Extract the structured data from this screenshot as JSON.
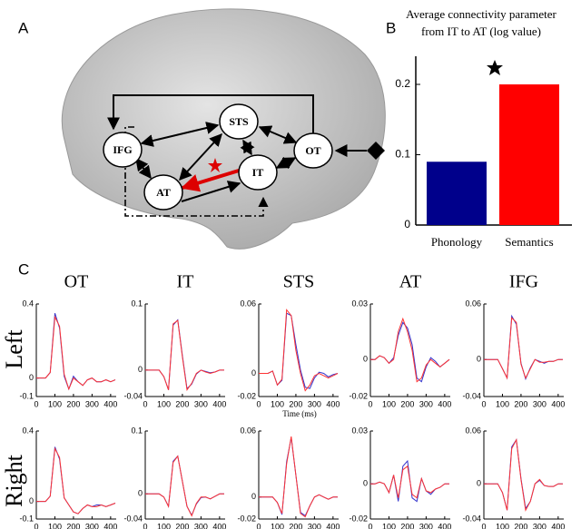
{
  "panel_labels": [
    "A",
    "B",
    "C"
  ],
  "diagram": {
    "nodes": [
      {
        "label": "IFG"
      },
      {
        "label": "STS"
      },
      {
        "label": "OT"
      },
      {
        "label": "IT"
      },
      {
        "label": "AT"
      }
    ]
  },
  "row_labels": [
    "Left",
    "Right"
  ],
  "chart_data": [
    {
      "type": "bar",
      "title": [
        "Average connectivity parameter",
        "from IT to AT  (log value)"
      ],
      "categories": [
        "Phonology",
        "Semantics"
      ],
      "values": [
        0.09,
        0.2
      ],
      "colors": [
        "#00008b",
        "#ff0000"
      ],
      "ylim": [
        0,
        0.24
      ],
      "yticks": [
        0,
        0.1,
        0.2
      ]
    },
    {
      "type": "line",
      "title": "OT",
      "x": [
        0,
        25,
        50,
        75,
        100,
        125,
        150,
        175,
        200,
        225,
        250,
        275,
        300,
        325,
        350,
        375,
        400,
        425
      ],
      "xlim": [
        0,
        430
      ],
      "xticks": [
        0,
        100,
        200,
        300,
        400
      ],
      "ylim": [
        -0.1,
        0.4
      ],
      "yticks": [
        -0.1,
        0,
        0.4
      ],
      "series": [
        {
          "color": "#3333cc",
          "values": [
            0,
            0,
            0,
            0.03,
            0.35,
            0.27,
            0.01,
            -0.06,
            0.01,
            -0.02,
            -0.04,
            -0.01,
            0,
            -0.02,
            -0.02,
            -0.01,
            -0.02,
            -0.01
          ]
        },
        {
          "color": "#ff3333",
          "values": [
            0,
            0,
            0,
            0.03,
            0.33,
            0.28,
            0.02,
            -0.06,
            0,
            -0.02,
            -0.04,
            -0.01,
            0,
            -0.02,
            -0.02,
            -0.01,
            -0.02,
            -0.01
          ]
        }
      ]
    },
    {
      "type": "line",
      "title": "IT",
      "x": [
        0,
        25,
        50,
        75,
        100,
        125,
        150,
        175,
        200,
        225,
        250,
        275,
        300,
        325,
        350,
        375,
        400,
        425
      ],
      "xlim": [
        0,
        430
      ],
      "xticks": [
        0,
        100,
        200,
        300,
        400
      ],
      "ylim": [
        -0.04,
        0.1
      ],
      "yticks": [
        -0.04,
        0,
        0.1
      ],
      "series": [
        {
          "color": "#3333cc",
          "values": [
            0,
            0,
            0,
            0,
            -0.01,
            -0.03,
            0.068,
            0.076,
            0.022,
            -0.028,
            -0.021,
            -0.006,
            0,
            -0.002,
            -0.004,
            -0.003,
            0,
            0
          ]
        },
        {
          "color": "#ff3333",
          "values": [
            0,
            0,
            0,
            0,
            -0.01,
            -0.03,
            0.07,
            0.075,
            0.02,
            -0.03,
            -0.02,
            -0.005,
            0,
            -0.003,
            -0.005,
            -0.003,
            0,
            0
          ]
        }
      ]
    },
    {
      "type": "line",
      "title": "STS",
      "xlabel": "Time (ms)",
      "x": [
        0,
        25,
        50,
        75,
        100,
        125,
        150,
        175,
        200,
        225,
        250,
        275,
        300,
        325,
        350,
        375,
        400,
        425
      ],
      "xlim": [
        0,
        430
      ],
      "xticks": [
        0,
        100,
        200,
        300,
        400
      ],
      "ylim": [
        -0.02,
        0.06
      ],
      "yticks": [
        -0.02,
        0,
        0.06
      ],
      "series": [
        {
          "color": "#3333cc",
          "values": [
            0,
            0,
            0,
            0.002,
            -0.01,
            -0.006,
            0.052,
            0.05,
            0.025,
            0.003,
            -0.012,
            -0.013,
            -0.004,
            0.001,
            0,
            -0.003,
            -0.001,
            0
          ]
        },
        {
          "color": "#ff3333",
          "values": [
            0,
            0,
            0,
            0.002,
            -0.01,
            -0.005,
            0.055,
            0.05,
            0.02,
            0,
            -0.015,
            -0.01,
            -0.002,
            0,
            -0.002,
            -0.004,
            -0.002,
            0
          ]
        }
      ]
    },
    {
      "type": "line",
      "title": "AT",
      "x": [
        0,
        25,
        50,
        75,
        100,
        125,
        150,
        175,
        200,
        225,
        250,
        275,
        300,
        325,
        350,
        375,
        400,
        425
      ],
      "xlim": [
        0,
        430
      ],
      "xticks": [
        0,
        100,
        200,
        300,
        400
      ],
      "ylim": [
        -0.02,
        0.03
      ],
      "yticks": [
        -0.02,
        0,
        0.03
      ],
      "series": [
        {
          "color": "#3333cc",
          "values": [
            0,
            0,
            0.002,
            0.001,
            -0.002,
            0.001,
            0.013,
            0.02,
            0.017,
            0.008,
            -0.01,
            -0.012,
            -0.004,
            0.001,
            -0.001,
            -0.004,
            -0.002,
            0
          ]
        },
        {
          "color": "#ff3333",
          "values": [
            0,
            0,
            0.002,
            0.001,
            -0.002,
            0,
            0.015,
            0.022,
            0.015,
            0.005,
            -0.012,
            -0.01,
            -0.003,
            0,
            -0.002,
            -0.004,
            -0.002,
            0
          ]
        }
      ]
    },
    {
      "type": "line",
      "title": "IFG",
      "x": [
        0,
        25,
        50,
        75,
        100,
        125,
        150,
        175,
        200,
        225,
        250,
        275,
        300,
        325,
        350,
        375,
        400,
        425
      ],
      "xlim": [
        0,
        430
      ],
      "xticks": [
        0,
        100,
        200,
        300,
        400
      ],
      "ylim": [
        -0.04,
        0.06
      ],
      "yticks": [
        -0.04,
        0,
        0.06
      ],
      "series": [
        {
          "color": "#3333cc",
          "values": [
            0,
            0,
            0,
            0,
            -0.01,
            -0.02,
            0.047,
            0.038,
            -0.004,
            -0.021,
            -0.009,
            0,
            -0.002,
            -0.004,
            -0.002,
            -0.002,
            0,
            0
          ]
        },
        {
          "color": "#ff3333",
          "values": [
            0,
            0,
            0,
            0,
            -0.01,
            -0.02,
            0.045,
            0.04,
            -0.005,
            -0.02,
            -0.01,
            0,
            -0.003,
            -0.003,
            -0.002,
            -0.002,
            0,
            0
          ]
        }
      ]
    },
    {
      "type": "line",
      "x": [
        0,
        25,
        50,
        75,
        100,
        125,
        150,
        175,
        200,
        225,
        250,
        275,
        300,
        325,
        350,
        375,
        400,
        425
      ],
      "xlim": [
        0,
        430
      ],
      "xticks": [
        0,
        100,
        200,
        300,
        400
      ],
      "ylim": [
        -0.1,
        0.4
      ],
      "yticks": [
        -0.1,
        0,
        0.4
      ],
      "series": [
        {
          "color": "#3333cc",
          "values": [
            0,
            0,
            0,
            0.03,
            0.31,
            0.24,
            0.02,
            -0.02,
            -0.06,
            -0.07,
            -0.04,
            -0.02,
            -0.03,
            -0.02,
            -0.02,
            -0.03,
            -0.02,
            -0.01
          ]
        },
        {
          "color": "#ff3333",
          "values": [
            0,
            0,
            0,
            0.03,
            0.3,
            0.25,
            0.02,
            -0.02,
            -0.06,
            -0.07,
            -0.04,
            -0.02,
            -0.03,
            -0.03,
            -0.02,
            -0.03,
            -0.02,
            -0.01
          ]
        }
      ]
    },
    {
      "type": "line",
      "x": [
        0,
        25,
        50,
        75,
        100,
        125,
        150,
        175,
        200,
        225,
        250,
        275,
        300,
        325,
        350,
        375,
        400,
        425
      ],
      "xlim": [
        0,
        430
      ],
      "xticks": [
        0,
        100,
        200,
        300,
        400
      ],
      "ylim": [
        -0.04,
        0.1
      ],
      "yticks": [
        -0.04,
        0,
        0.1
      ],
      "series": [
        {
          "color": "#3333cc",
          "values": [
            0,
            0,
            0,
            0,
            -0.005,
            -0.02,
            0.052,
            0.06,
            0.02,
            -0.02,
            -0.034,
            -0.016,
            -0.006,
            -0.005,
            -0.008,
            -0.004,
            0,
            0
          ]
        },
        {
          "color": "#ff3333",
          "values": [
            0,
            0,
            0,
            0,
            -0.005,
            -0.02,
            0.05,
            0.06,
            0.02,
            -0.02,
            -0.035,
            -0.015,
            -0.005,
            -0.005,
            -0.008,
            -0.004,
            0,
            0
          ]
        }
      ]
    },
    {
      "type": "line",
      "x": [
        0,
        25,
        50,
        75,
        100,
        125,
        150,
        175,
        200,
        225,
        250,
        275,
        300,
        325,
        350,
        375,
        400,
        425
      ],
      "xlim": [
        0,
        430
      ],
      "xticks": [
        0,
        100,
        200,
        300,
        400
      ],
      "ylim": [
        -0.02,
        0.06
      ],
      "yticks": [
        -0.02,
        0,
        0.06
      ],
      "series": [
        {
          "color": "#3333cc",
          "values": [
            0,
            0,
            0,
            0,
            -0.005,
            -0.016,
            0.032,
            0.054,
            0.02,
            -0.014,
            -0.017,
            -0.008,
            0,
            0.002,
            0,
            -0.002,
            0,
            0
          ]
        },
        {
          "color": "#ff3333",
          "values": [
            0,
            0,
            0,
            0,
            -0.005,
            -0.015,
            0.03,
            0.055,
            0.02,
            -0.015,
            -0.018,
            -0.008,
            0,
            0.002,
            0,
            -0.002,
            0,
            0
          ]
        }
      ]
    },
    {
      "type": "line",
      "x": [
        0,
        25,
        50,
        75,
        100,
        125,
        150,
        175,
        200,
        225,
        250,
        275,
        300,
        325,
        350,
        375,
        400,
        425
      ],
      "xlim": [
        0,
        430
      ],
      "xticks": [
        0,
        100,
        200,
        300,
        400
      ],
      "ylim": [
        -0.02,
        0.03
      ],
      "yticks": [
        -0.02,
        0,
        0.03
      ],
      "series": [
        {
          "color": "#3333cc",
          "values": [
            0,
            0,
            0.001,
            0,
            -0.005,
            0.005,
            -0.01,
            0.01,
            0.013,
            -0.008,
            -0.01,
            0.003,
            -0.004,
            -0.006,
            -0.003,
            -0.002,
            0,
            0
          ]
        },
        {
          "color": "#ff3333",
          "values": [
            0,
            0,
            0.001,
            0,
            -0.005,
            0.005,
            -0.008,
            0.008,
            0.01,
            -0.006,
            -0.008,
            0.003,
            -0.004,
            -0.005,
            -0.003,
            -0.002,
            0,
            0
          ]
        }
      ]
    },
    {
      "type": "line",
      "x": [
        0,
        25,
        50,
        75,
        100,
        125,
        150,
        175,
        200,
        225,
        250,
        275,
        300,
        325,
        350,
        375,
        400,
        425
      ],
      "xlim": [
        0,
        430
      ],
      "xticks": [
        0,
        100,
        200,
        300,
        400
      ],
      "ylim": [
        -0.04,
        0.06
      ],
      "yticks": [
        -0.04,
        0,
        0.06
      ],
      "series": [
        {
          "color": "#3333cc",
          "values": [
            0,
            0,
            0,
            0,
            -0.01,
            -0.03,
            0.042,
            0.05,
            0.006,
            -0.028,
            -0.02,
            0,
            0.004,
            -0.002,
            -0.003,
            -0.003,
            0,
            0
          ]
        },
        {
          "color": "#ff3333",
          "values": [
            0,
            0,
            0,
            0,
            -0.01,
            -0.03,
            0.04,
            0.05,
            0.005,
            -0.03,
            -0.02,
            0,
            0.005,
            -0.002,
            -0.003,
            -0.003,
            0,
            0
          ]
        }
      ]
    }
  ]
}
